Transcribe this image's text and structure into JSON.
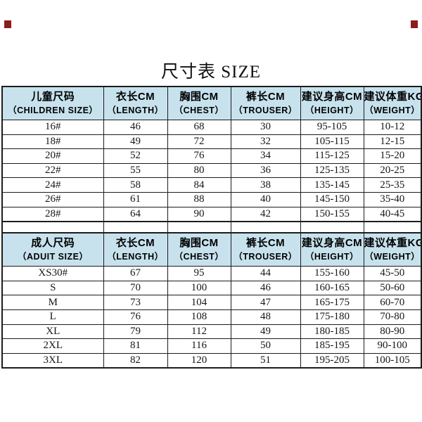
{
  "title": "尺寸表 SIZE",
  "colors": {
    "header_bg": "#c7e2ed",
    "border": "#1c1c1c",
    "corner_mark": "#8b1d1d",
    "text": "#111111"
  },
  "tables": [
    {
      "name": "children",
      "headers_cn": [
        "儿童尺码",
        "衣长CM",
        "胸围CM",
        "裤长CM",
        "建议身高CM",
        "建议体重KG"
      ],
      "headers_en": [
        "（CHILDREN SIZE）",
        "（LENGTH）",
        "（CHEST）",
        "（TROUSER）",
        "（HEIGHT）",
        "（WEIGHT）"
      ],
      "rows": [
        [
          "16#",
          "46",
          "68",
          "30",
          "95-105",
          "10-12"
        ],
        [
          "18#",
          "49",
          "72",
          "32",
          "105-115",
          "12-15"
        ],
        [
          "20#",
          "52",
          "76",
          "34",
          "115-125",
          "15-20"
        ],
        [
          "22#",
          "55",
          "80",
          "36",
          "125-135",
          "20-25"
        ],
        [
          "24#",
          "58",
          "84",
          "38",
          "135-145",
          "25-35"
        ],
        [
          "26#",
          "61",
          "88",
          "40",
          "145-150",
          "35-40"
        ],
        [
          "28#",
          "64",
          "90",
          "42",
          "150-155",
          "40-45"
        ]
      ]
    },
    {
      "name": "adult",
      "headers_cn": [
        "成人尺码",
        "衣长CM",
        "胸围CM",
        "裤长CM",
        "建议身高CM",
        "建议体重KG"
      ],
      "headers_en": [
        "（ADUIT SIZE）",
        "（LENGTH）",
        "（CHEST）",
        "（TROUSER）",
        "（HEIGHT）",
        "（WEIGHT）"
      ],
      "rows": [
        [
          "XS30#",
          "67",
          "95",
          "44",
          "155-160",
          "45-50"
        ],
        [
          "S",
          "70",
          "100",
          "46",
          "160-165",
          "50-60"
        ],
        [
          "M",
          "73",
          "104",
          "47",
          "165-175",
          "60-70"
        ],
        [
          "L",
          "76",
          "108",
          "48",
          "175-180",
          "70-80"
        ],
        [
          "XL",
          "79",
          "112",
          "49",
          "180-185",
          "80-90"
        ],
        [
          "2XL",
          "81",
          "116",
          "50",
          "185-195",
          "90-100"
        ],
        [
          "3XL",
          "82",
          "120",
          "51",
          "195-205",
          "100-105"
        ]
      ]
    }
  ]
}
